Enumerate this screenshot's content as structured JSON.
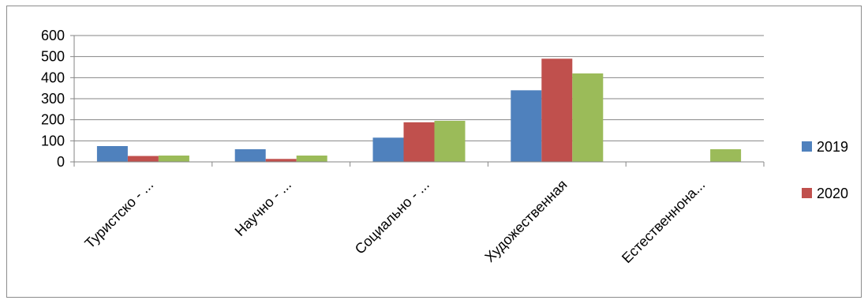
{
  "chart_data": {
    "type": "bar",
    "title": "",
    "xlabel": "",
    "ylabel": "",
    "categories": [
      "Туристско - ...",
      "Научно - ...",
      "Социально - ...",
      "Художественная",
      "Естественнона..."
    ],
    "series": [
      {
        "name": "2019",
        "color": "#4f81bd",
        "values": [
          75,
          60,
          115,
          340,
          0
        ]
      },
      {
        "name": "2020",
        "color": "#c0504d",
        "values": [
          28,
          14,
          188,
          490,
          0
        ]
      },
      {
        "name": "",
        "color": "#9bbb59",
        "values": [
          30,
          30,
          195,
          420,
          60
        ]
      }
    ],
    "ylim": [
      0,
      600
    ],
    "yticks": [
      0,
      100,
      200,
      300,
      400,
      500,
      600
    ],
    "grid": true,
    "legend_position": "right"
  }
}
